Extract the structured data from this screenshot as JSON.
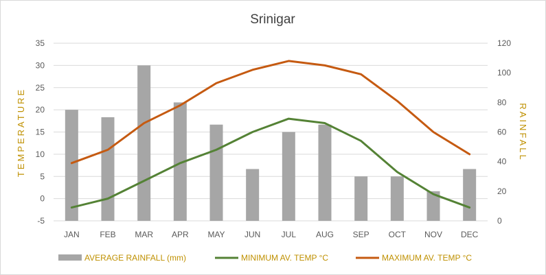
{
  "colors": {
    "rainfall": "#a6a6a6",
    "min_temp": "#548235",
    "max_temp": "#c55a11",
    "axis_title": "#bf9000",
    "legend_text": "#bf9000",
    "gridline": "#d9d9d9"
  },
  "chart_data": {
    "type": "bar",
    "title": "Srinigar",
    "categories": [
      "JAN",
      "FEB",
      "MAR",
      "APR",
      "MAY",
      "JUN",
      "JUL",
      "AUG",
      "SEP",
      "OCT",
      "NOV",
      "DEC"
    ],
    "y_left": {
      "label": "TEMPERATURE",
      "range": [
        -5,
        35
      ],
      "ticks": [
        -5,
        0,
        5,
        10,
        15,
        20,
        25,
        30,
        35
      ]
    },
    "y_right": {
      "label": "RAINFALL",
      "range": [
        0,
        120
      ],
      "ticks": [
        0,
        20,
        40,
        60,
        80,
        100,
        120
      ]
    },
    "grid": true,
    "legend_position": "bottom",
    "series": [
      {
        "name": "AVERAGE RAINFALL (mm)",
        "type": "bar",
        "axis": "right",
        "values": [
          75,
          70,
          105,
          80,
          65,
          35,
          60,
          65,
          30,
          30,
          20,
          35
        ]
      },
      {
        "name": "MINIMUM AV. TEMP °C",
        "type": "line",
        "axis": "left",
        "values": [
          -2,
          0,
          4,
          8,
          11,
          15,
          18,
          17,
          13,
          6,
          1,
          -2
        ]
      },
      {
        "name": "MAXIMUM AV. TEMP °C",
        "type": "line",
        "axis": "left",
        "values": [
          8,
          11,
          17,
          21,
          26,
          29,
          31,
          30,
          28,
          22,
          15,
          10
        ]
      }
    ]
  }
}
